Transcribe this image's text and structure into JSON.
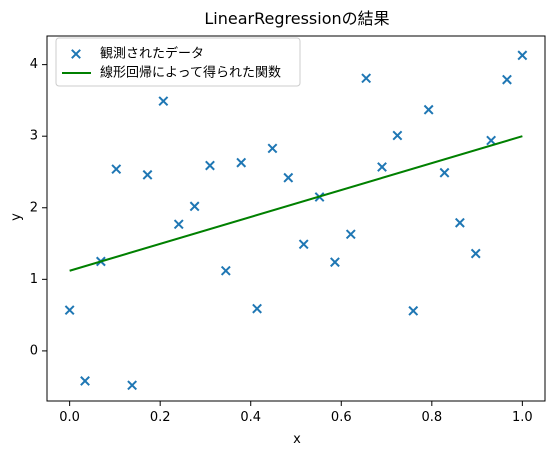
{
  "chart_data": {
    "type": "scatter",
    "title": "LinearRegressionの結果",
    "xlabel": "x",
    "ylabel": "y",
    "xlim": [
      -0.05,
      1.05
    ],
    "ylim": [
      -0.7,
      4.4
    ],
    "xticks": [
      0.0,
      0.2,
      0.4,
      0.6,
      0.8,
      1.0
    ],
    "xtick_labels": [
      "0.0",
      "0.2",
      "0.4",
      "0.6",
      "0.8",
      "1.0"
    ],
    "yticks": [
      0,
      1,
      2,
      3,
      4
    ],
    "ytick_labels": [
      "0",
      "1",
      "2",
      "3",
      "4"
    ],
    "grid": false,
    "legend_position": "top-left",
    "series": [
      {
        "name": "観測されたデータ",
        "type": "scatter",
        "marker": "x",
        "color": "#1f77b4",
        "points": [
          [
            0.0,
            0.57
          ],
          [
            0.034,
            -0.42
          ],
          [
            0.069,
            1.25
          ],
          [
            0.103,
            2.54
          ],
          [
            0.138,
            -0.48
          ],
          [
            0.172,
            2.46
          ],
          [
            0.207,
            3.49
          ],
          [
            0.241,
            1.77
          ],
          [
            0.276,
            2.02
          ],
          [
            0.31,
            2.59
          ],
          [
            0.345,
            1.12
          ],
          [
            0.379,
            2.63
          ],
          [
            0.414,
            0.59
          ],
          [
            0.448,
            2.83
          ],
          [
            0.483,
            2.42
          ],
          [
            0.517,
            1.49
          ],
          [
            0.552,
            2.15
          ],
          [
            0.586,
            1.24
          ],
          [
            0.621,
            1.63
          ],
          [
            0.655,
            3.81
          ],
          [
            0.69,
            2.57
          ],
          [
            0.724,
            3.01
          ],
          [
            0.759,
            0.56
          ],
          [
            0.793,
            3.37
          ],
          [
            0.828,
            2.49
          ],
          [
            0.862,
            1.79
          ],
          [
            0.897,
            1.36
          ],
          [
            0.931,
            2.94
          ],
          [
            0.966,
            3.79
          ],
          [
            1.0,
            4.13
          ]
        ]
      },
      {
        "name": "線形回帰によって得られた関数",
        "type": "line",
        "color": "#008000",
        "points": [
          [
            0.0,
            1.12
          ],
          [
            1.0,
            3.0
          ]
        ]
      }
    ]
  }
}
